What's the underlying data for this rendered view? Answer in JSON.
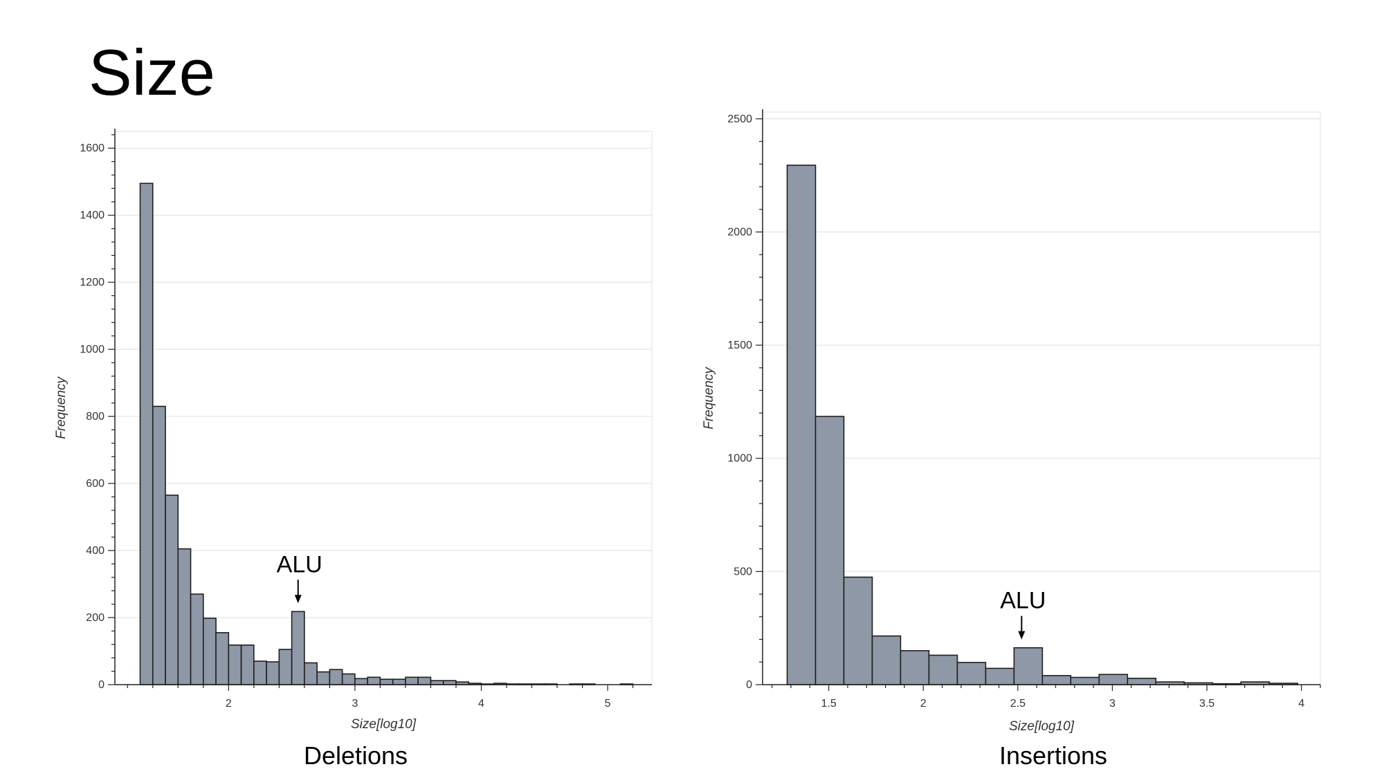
{
  "slide": {
    "title": "Size"
  },
  "colors": {
    "bar_fill": "#8f98a6",
    "bar_stroke": "#1e1e1e",
    "grid": "#e6e6e6",
    "axis": "#222222"
  },
  "chart_data": [
    {
      "type": "bar",
      "caption": "Deletions",
      "xlabel": "Size[log10]",
      "ylabel": "Frequency",
      "xlim": [
        1.1,
        5.35
      ],
      "ylim": [
        0,
        1650
      ],
      "xticks": [
        2,
        3,
        4,
        5
      ],
      "yticks": [
        0,
        200,
        400,
        600,
        800,
        1000,
        1200,
        1400,
        1600
      ],
      "bin_width": 0.1,
      "bins_x": [
        1.3,
        1.4,
        1.5,
        1.6,
        1.7,
        1.8,
        1.9,
        2.0,
        2.1,
        2.2,
        2.3,
        2.4,
        2.5,
        2.6,
        2.7,
        2.8,
        2.9,
        3.0,
        3.1,
        3.2,
        3.3,
        3.4,
        3.5,
        3.6,
        3.7,
        3.8,
        3.9,
        4.0,
        4.1,
        4.2,
        4.3,
        4.4,
        4.5,
        4.6,
        4.7,
        4.8,
        4.9,
        5.0,
        5.1
      ],
      "values": [
        1495,
        830,
        565,
        405,
        270,
        198,
        155,
        118,
        118,
        70,
        68,
        105,
        218,
        65,
        38,
        45,
        32,
        18,
        22,
        16,
        16,
        22,
        22,
        12,
        12,
        8,
        4,
        2,
        4,
        2,
        2,
        2,
        2,
        0,
        2,
        2,
        0,
        0,
        2
      ],
      "annotation": {
        "text": "ALU",
        "x": 2.55,
        "y": 218
      },
      "grid": true
    },
    {
      "type": "bar",
      "caption": "Insertions",
      "xlabel": "Size[log10]",
      "ylabel": "Frequency",
      "xlim": [
        1.15,
        4.1
      ],
      "ylim": [
        0,
        2530
      ],
      "xticks": [
        1.5,
        2,
        2.5,
        3,
        3.5,
        4
      ],
      "xtick_labels": [
        "1.5",
        "2",
        "2.5",
        "3",
        "3.5",
        "4"
      ],
      "yticks": [
        0,
        500,
        1000,
        1500,
        2000,
        2500
      ],
      "bin_width": 0.15,
      "bins_x": [
        1.28,
        1.43,
        1.58,
        1.73,
        1.88,
        2.03,
        2.18,
        2.33,
        2.48,
        2.63,
        2.78,
        2.93,
        3.08,
        3.23,
        3.38,
        3.53,
        3.68,
        3.83
      ],
      "values": [
        2295,
        1185,
        475,
        215,
        150,
        130,
        98,
        72,
        163,
        40,
        32,
        45,
        28,
        12,
        8,
        4,
        12,
        6
      ],
      "annotation": {
        "text": "ALU",
        "x": 2.52,
        "y": 163
      },
      "grid": true
    }
  ]
}
